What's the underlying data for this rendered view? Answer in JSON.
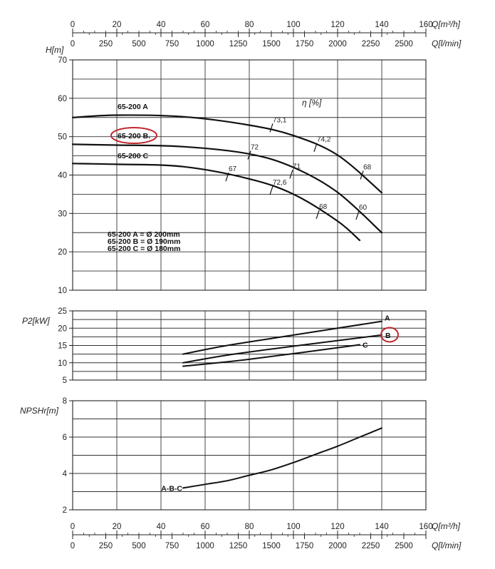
{
  "chart_data": [
    {
      "type": "line",
      "name": "H-Q",
      "ylabel": "H[m]",
      "xlim": [
        0,
        160
      ],
      "ylim": [
        10,
        70
      ],
      "y_ticks": [
        "10",
        "20",
        "30",
        "40",
        "50",
        "60",
        "70"
      ],
      "eta_label": "η [%]",
      "series": [
        {
          "name": "65-200 A",
          "x": [
            0,
            20,
            50,
            80,
            100,
            120,
            140
          ],
          "y": [
            55,
            55.6,
            55.2,
            53,
            50.3,
            45.2,
            35.4
          ]
        },
        {
          "name": "65-200 B.",
          "x": [
            0,
            20,
            50,
            80,
            100,
            120,
            140
          ],
          "y": [
            48,
            47.8,
            47.4,
            45.5,
            42,
            35.5,
            25
          ]
        },
        {
          "name": "65-200 C",
          "x": [
            0,
            20,
            50,
            80,
            100,
            120,
            130
          ],
          "y": [
            43,
            42.8,
            42.2,
            39,
            35,
            28,
            23
          ]
        }
      ],
      "efficiency_labels": [
        {
          "text": "73,1",
          "x": 90,
          "y": 52.3
        },
        {
          "text": "74,2",
          "x": 110,
          "y": 47.2
        },
        {
          "text": "68",
          "x": 131,
          "y": 40
        },
        {
          "text": "72",
          "x": 80,
          "y": 45.2
        },
        {
          "text": "71",
          "x": 99,
          "y": 40.2
        },
        {
          "text": "60",
          "x": 129,
          "y": 29.5
        },
        {
          "text": "67",
          "x": 70,
          "y": 39.5
        },
        {
          "text": "72,6",
          "x": 90,
          "y": 36
        },
        {
          "text": "68",
          "x": 111,
          "y": 29.7
        }
      ],
      "annotations": [
        "65-200 A = Ø 200mm",
        "65-200 B = Ø 190mm",
        "65-200 C = Ø 180mm"
      ],
      "highlight": "65-200 B."
    },
    {
      "type": "line",
      "name": "P2-Q",
      "ylabel": "P2[kW]",
      "xlim": [
        0,
        160
      ],
      "ylim": [
        5,
        25
      ],
      "y_ticks": [
        "5",
        "10",
        "15",
        "20",
        "25"
      ],
      "series": [
        {
          "name": "A",
          "x": [
            50,
            70,
            100,
            140
          ],
          "y": [
            12.5,
            15,
            18,
            22
          ]
        },
        {
          "name": "B",
          "x": [
            50,
            70,
            100,
            140
          ],
          "y": [
            10,
            12.2,
            14.8,
            18
          ]
        },
        {
          "name": "C",
          "x": [
            50,
            80,
            130
          ],
          "y": [
            9,
            11,
            15.2
          ]
        }
      ],
      "highlight": "B"
    },
    {
      "type": "line",
      "name": "NPSHr-Q",
      "ylabel": "NPSHr[m]",
      "xlim": [
        0,
        160
      ],
      "ylim": [
        2,
        8
      ],
      "y_ticks": [
        "2",
        "4",
        "6",
        "8"
      ],
      "series": [
        {
          "name": "A-B-C",
          "x": [
            50,
            60,
            70,
            80,
            90,
            100,
            110,
            120,
            130,
            140
          ],
          "y": [
            3.2,
            3.4,
            3.6,
            3.9,
            4.2,
            4.6,
            5.05,
            5.5,
            6.0,
            6.5
          ]
        }
      ]
    }
  ],
  "axes": {
    "q_m3h": {
      "label": "Q[m³/h]",
      "ticks": [
        "0",
        "20",
        "40",
        "60",
        "80",
        "100",
        "120",
        "140",
        "160"
      ]
    },
    "q_lmin": {
      "label": "Q[l/min]",
      "ticks": [
        "0",
        "250",
        "500",
        "750",
        "1000",
        "1250",
        "1500",
        "1750",
        "2000",
        "2250",
        "2500"
      ]
    }
  }
}
